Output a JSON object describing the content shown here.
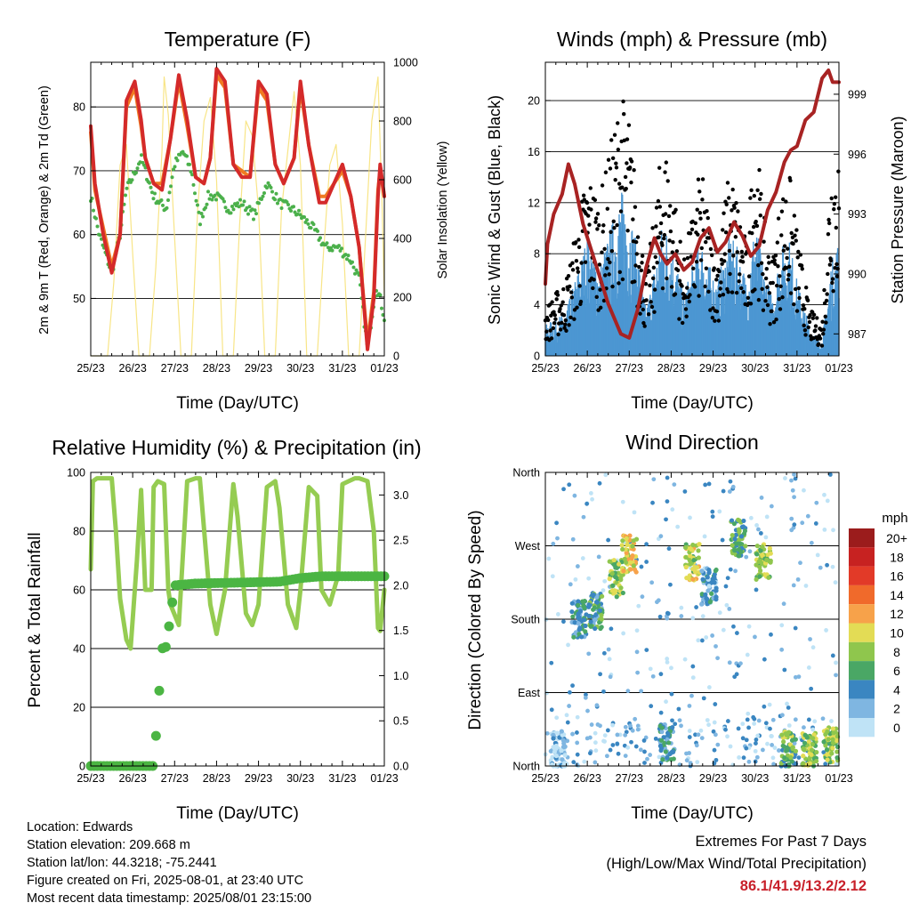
{
  "panels": {
    "temperature": {
      "title": "Temperature (F)",
      "xlabel": "Time (Day/UTC)",
      "ylabel_left": "2m & 9m T (Red, Orange) & 2m Td (Green)",
      "ylabel_right": "Solar Insolation (Yellow)"
    },
    "winds": {
      "title": "Winds (mph) & Pressure (mb)",
      "xlabel": "Time (Day/UTC)",
      "ylabel_left": "Sonic Wind & Gust (Blue, Black)",
      "ylabel_right": "Station Pressure (Maroon)"
    },
    "humidity": {
      "title": "Relative Humidity (%) & Precipitation (in)",
      "xlabel": "Time (Day/UTC)",
      "ylabel_left": "Percent & Total Rainfall"
    },
    "direction": {
      "title": "Wind Direction",
      "xlabel": "Time (Day/UTC)",
      "ylabel_left": "Direction (Colored By Speed)",
      "legend_title": "mph"
    }
  },
  "info": {
    "location": "Location: Edwards",
    "elevation": "Station elevation: 209.668 m",
    "latlon": "Station lat/lon: 44.3218; -75.2441",
    "created": "Figure created on Fri, 2025-08-01, at 23:40 UTC",
    "recent": "Most recent data timestamp: 2025/08/01 23:15:00"
  },
  "extremes": {
    "line1": "Extremes For Past 7 Days",
    "line2": "(High/Low/Max Wind/Total Precipitation)",
    "values": "86.1/41.9/13.2/2.12",
    "values_color": "#c8202a"
  },
  "chart_data": [
    {
      "type": "line",
      "title": "Temperature (F)",
      "xlabel": "Time (Day/UTC)",
      "ylabel": "2m & 9m T (Red, Orange) & 2m Td (Green)",
      "y2label": "Solar Insolation (Yellow)",
      "x_ticks": [
        "25/23",
        "26/23",
        "27/23",
        "28/23",
        "29/23",
        "30/23",
        "31/23",
        "01/23"
      ],
      "xlim": [
        0,
        7
      ],
      "ylim": [
        41,
        87
      ],
      "y_ticks": [
        50,
        60,
        70,
        80
      ],
      "y2lim": [
        0,
        1000
      ],
      "y2_ticks": [
        0,
        200,
        400,
        600,
        800,
        1000
      ],
      "grid": "horizontal",
      "series": [
        {
          "name": "2m T",
          "color": "#d42a2a",
          "axis": "left",
          "x": [
            0,
            0.1,
            0.3,
            0.5,
            0.7,
            0.85,
            1.05,
            1.2,
            1.3,
            1.5,
            1.7,
            1.9,
            2.1,
            2.3,
            2.5,
            2.7,
            2.85,
            3.0,
            3.2,
            3.4,
            3.6,
            3.8,
            4.0,
            4.2,
            4.4,
            4.6,
            4.85,
            5.0,
            5.2,
            5.45,
            5.6,
            5.8,
            6.0,
            6.2,
            6.4,
            6.6,
            6.75,
            6.85,
            6.9,
            7.0
          ],
          "y": [
            77,
            68,
            60,
            54,
            60,
            81,
            84,
            78,
            72,
            68,
            67,
            75,
            85,
            78,
            69,
            68,
            72,
            86,
            84,
            71,
            69,
            69,
            84,
            82,
            71,
            68,
            72,
            84,
            74,
            65,
            65,
            68,
            71,
            66,
            58,
            42,
            50,
            66,
            71,
            66
          ]
        },
        {
          "name": "9m T",
          "color": "#f07a22",
          "axis": "left",
          "x": [
            0,
            0.1,
            0.3,
            0.5,
            0.7,
            0.85,
            1.05,
            1.2,
            1.3,
            1.5,
            1.7,
            1.9,
            2.1,
            2.3,
            2.5,
            2.7,
            2.85,
            3.0,
            3.2,
            3.4,
            3.6,
            3.8,
            4.0,
            4.2,
            4.4,
            4.6,
            4.85,
            5.0,
            5.2,
            5.45,
            5.6,
            5.8,
            6.0,
            6.2,
            6.4,
            6.6,
            6.75,
            6.85,
            6.9,
            7.0
          ],
          "y": [
            76,
            67,
            61,
            55,
            60,
            80,
            83,
            77,
            72,
            68,
            68,
            75,
            84,
            77,
            69,
            68,
            72,
            85,
            83,
            71,
            70,
            69,
            83,
            81,
            71,
            68,
            72,
            83,
            74,
            66,
            66,
            68,
            70,
            66,
            58,
            43,
            51,
            67,
            70,
            66
          ]
        },
        {
          "name": "2m Td",
          "color": "#4bb04b",
          "axis": "left",
          "x": [
            0,
            0.2,
            0.5,
            0.7,
            0.85,
            1.0,
            1.2,
            1.5,
            1.8,
            2.0,
            2.2,
            2.4,
            2.6,
            2.8,
            3.0,
            3.3,
            3.6,
            3.9,
            4.2,
            4.5,
            4.8,
            5.0,
            5.3,
            5.6,
            5.9,
            6.2,
            6.4,
            6.6,
            6.8,
            6.9,
            7.0
          ],
          "y": [
            66,
            60,
            54,
            60,
            67,
            69,
            72,
            66,
            64,
            71,
            73,
            70,
            62,
            66,
            66,
            64,
            65,
            63,
            68,
            65,
            64,
            63,
            61,
            58,
            58,
            56,
            53,
            42,
            52,
            50,
            47
          ]
        },
        {
          "name": "Solar Insolation",
          "color": "#f7e27a",
          "axis": "right",
          "x": [
            0,
            0.4,
            0.55,
            0.7,
            0.85,
            1.0,
            1.15,
            1.4,
            1.55,
            1.7,
            1.75,
            1.85,
            2.0,
            2.15,
            2.4,
            2.55,
            2.7,
            2.85,
            3.0,
            3.15,
            3.4,
            3.55,
            3.7,
            3.85,
            4.0,
            4.15,
            4.4,
            4.55,
            4.7,
            4.85,
            5.0,
            5.15,
            5.4,
            5.55,
            5.7,
            5.85,
            6.0,
            6.15,
            6.4,
            6.55,
            6.7,
            6.85,
            6.95,
            7.0
          ],
          "y": [
            0,
            0,
            250,
            650,
            720,
            350,
            0,
            0,
            300,
            700,
            950,
            820,
            400,
            0,
            0,
            500,
            800,
            880,
            600,
            0,
            0,
            450,
            800,
            750,
            500,
            0,
            0,
            500,
            700,
            900,
            650,
            0,
            0,
            350,
            650,
            720,
            450,
            0,
            0,
            400,
            800,
            950,
            500,
            200
          ]
        }
      ]
    },
    {
      "type": "scatter",
      "title": "Winds (mph) & Pressure (mb)",
      "xlabel": "Time (Day/UTC)",
      "ylabel": "Sonic Wind & Gust (Blue, Black)",
      "y2label": "Station Pressure (Maroon)",
      "x_ticks": [
        "25/23",
        "26/23",
        "27/23",
        "28/23",
        "29/23",
        "30/23",
        "31/23",
        "01/23"
      ],
      "xlim": [
        0,
        7
      ],
      "ylim": [
        0,
        23
      ],
      "y_ticks": [
        0,
        4,
        8,
        12,
        16,
        20
      ],
      "y2lim": [
        985.9,
        1000.6
      ],
      "y2_ticks": [
        987,
        990,
        993,
        996,
        999
      ],
      "grid": "horizontal",
      "series": [
        {
          "name": "Wind envelope",
          "color": "#4c97d2",
          "x": [
            0,
            0.5,
            0.8,
            1.0,
            1.3,
            1.6,
            1.8,
            2.0,
            2.2,
            2.4,
            2.6,
            2.8,
            3.0,
            3.3,
            3.5,
            3.7,
            3.9,
            4.1,
            4.4,
            4.6,
            4.8,
            5.0,
            5.2,
            5.4,
            5.6,
            5.8,
            6.0,
            6.3,
            6.6,
            6.8,
            7.0
          ],
          "y": [
            2,
            3,
            6,
            8,
            6,
            9,
            11,
            10,
            7,
            3,
            6,
            9,
            8,
            4,
            6,
            8,
            6,
            5,
            8,
            7,
            5,
            9,
            6,
            4,
            7,
            8,
            5,
            2,
            1,
            6,
            8
          ]
        },
        {
          "name": "Gust envelope",
          "color": "#000000",
          "x": [
            0,
            0.5,
            0.8,
            1.0,
            1.3,
            1.6,
            1.8,
            2.0,
            2.2,
            2.4,
            2.6,
            2.8,
            3.0,
            3.3,
            3.5,
            3.7,
            3.9,
            4.1,
            4.4,
            4.6,
            4.8,
            5.0,
            5.2,
            5.4,
            5.6,
            5.8,
            6.0,
            6.3,
            6.6,
            6.8,
            7.0
          ],
          "y": [
            3,
            5,
            9,
            12,
            10,
            14,
            17,
            15,
            10,
            5,
            9,
            14,
            12,
            6,
            9,
            12,
            9,
            7,
            12,
            10,
            7,
            15,
            9,
            6,
            10,
            12,
            8,
            3,
            2,
            13,
            14
          ]
        },
        {
          "name": "Station Pressure",
          "color": "#a82323",
          "axis": "right",
          "x": [
            0,
            0.05,
            0.2,
            0.4,
            0.55,
            0.7,
            0.9,
            1.2,
            1.5,
            1.8,
            2.0,
            2.2,
            2.4,
            2.6,
            2.75,
            2.9,
            3.1,
            3.3,
            3.5,
            3.7,
            3.9,
            4.1,
            4.3,
            4.5,
            4.7,
            4.9,
            5.1,
            5.3,
            5.5,
            5.7,
            5.85,
            6.0,
            6.2,
            6.4,
            6.6,
            6.75,
            6.85,
            7.0
          ],
          "y": [
            989.5,
            991.5,
            993,
            994,
            995.5,
            994.5,
            992.5,
            990.5,
            988.5,
            987,
            986.8,
            988.2,
            990.3,
            991.8,
            991,
            990.5,
            991,
            990.2,
            990.6,
            991.8,
            992.3,
            991.1,
            991.6,
            992.6,
            991.9,
            990.9,
            991.4,
            993.2,
            994.1,
            995.6,
            996.2,
            996.4,
            997.7,
            998.1,
            999.8,
            1000.2,
            999.6,
            999.6
          ]
        }
      ]
    },
    {
      "type": "line",
      "title": "Relative Humidity (%) & Precipitation (in)",
      "xlabel": "Time (Day/UTC)",
      "ylabel": "Percent & Total Rainfall",
      "x_ticks": [
        "25/23",
        "26/23",
        "27/23",
        "28/23",
        "29/23",
        "30/23",
        "31/23",
        "01/23"
      ],
      "xlim": [
        0,
        7
      ],
      "ylim": [
        0,
        100
      ],
      "y_ticks": [
        0,
        20,
        40,
        60,
        80,
        100
      ],
      "y2lim": [
        0,
        3.25
      ],
      "y2_ticks": [
        0.0,
        0.5,
        1.0,
        1.5,
        2.0,
        2.5,
        3.0
      ],
      "grid": "horizontal",
      "series": [
        {
          "name": "Relative Humidity",
          "color": "#95cc52",
          "x": [
            0,
            0.05,
            0.15,
            0.5,
            0.6,
            0.7,
            0.85,
            0.95,
            1.1,
            1.2,
            1.3,
            1.45,
            1.5,
            1.6,
            1.75,
            1.85,
            1.9,
            2.1,
            2.3,
            2.5,
            2.6,
            2.85,
            3.0,
            3.2,
            3.4,
            3.5,
            3.7,
            3.85,
            4.0,
            4.2,
            4.4,
            4.5,
            4.7,
            4.9,
            5.0,
            5.2,
            5.4,
            5.5,
            5.7,
            5.9,
            6.0,
            6.15,
            6.3,
            6.4,
            6.6,
            6.75,
            6.85,
            6.9,
            7.0
          ],
          "y": [
            67,
            97,
            98,
            98,
            80,
            57,
            43,
            40,
            70,
            94,
            60,
            60,
            95,
            97,
            96,
            60,
            55,
            48,
            97,
            98,
            98,
            55,
            45,
            60,
            96,
            85,
            52,
            48,
            55,
            95,
            97,
            88,
            55,
            47,
            60,
            95,
            92,
            60,
            55,
            65,
            96,
            97,
            98,
            98,
            97,
            80,
            47,
            46,
            60
          ]
        },
        {
          "name": "Total Rainfall",
          "color": "#4bb543",
          "axis": "right",
          "x": [
            0,
            1.0,
            1.5,
            1.6,
            1.7,
            1.8,
            2.0,
            2.5,
            4.5,
            5.0,
            5.5,
            6.0,
            7.0
          ],
          "y": [
            0.0,
            0.0,
            0.0,
            0.6,
            1.3,
            1.32,
            2.0,
            2.02,
            2.04,
            2.08,
            2.1,
            2.1,
            2.1
          ]
        }
      ]
    },
    {
      "type": "scatter",
      "title": "Wind Direction",
      "xlabel": "Time (Day/UTC)",
      "ylabel": "Direction (Colored By Speed)",
      "x_ticks": [
        "25/23",
        "26/23",
        "27/23",
        "28/23",
        "29/23",
        "30/23",
        "31/23",
        "01/23"
      ],
      "xlim": [
        0,
        7
      ],
      "ylim": [
        0,
        360
      ],
      "y_ticks": [
        "North",
        "East",
        "South",
        "West",
        "North"
      ],
      "grid": "horizontal",
      "legend": {
        "title": "mph",
        "placement": "right",
        "labels": [
          "20+",
          "18",
          "16",
          "14",
          "12",
          "10",
          "8",
          "6",
          "4",
          "2",
          "0"
        ],
        "colors": [
          "#9b1c1c",
          "#c72221",
          "#e23a28",
          "#f06a2b",
          "#f7a24a",
          "#e3dc55",
          "#8fc64d",
          "#4aa765",
          "#3a86c1",
          "#7fb6e1",
          "#bfe3f6"
        ]
      },
      "series": [
        {
          "name": "Direction clusters",
          "x": [
            0.3,
            0.8,
            1.2,
            1.7,
            2.0,
            2.9,
            3.5,
            3.9,
            4.6,
            5.2,
            5.8,
            6.3,
            6.8
          ],
          "y": [
            20,
            180,
            190,
            230,
            260,
            30,
            250,
            220,
            280,
            250,
            20,
            18,
            25
          ],
          "speed": [
            1,
            4,
            5,
            8,
            10,
            4,
            9,
            3,
            6,
            8,
            7,
            8,
            8
          ]
        }
      ]
    }
  ]
}
